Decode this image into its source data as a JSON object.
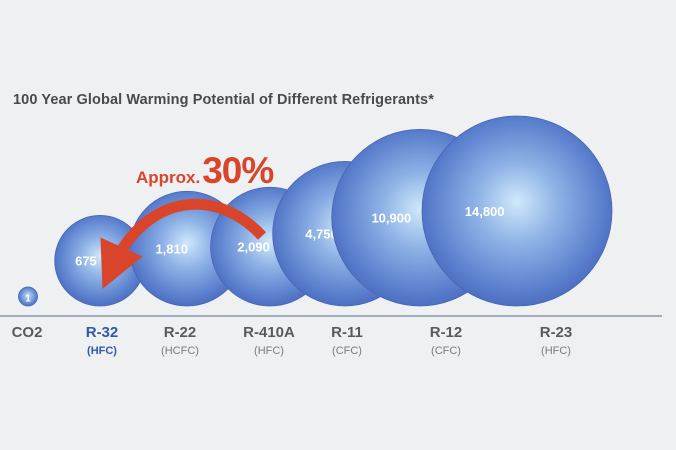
{
  "chart_data": {
    "type": "bubble",
    "title": "100 Year Global Warming Potential of Different Refrigerants*",
    "annotation": {
      "prefix": "Approx.",
      "value": "30%",
      "from": "R-410A",
      "to": "R-32"
    },
    "bar_color": "#4f74c4",
    "highlight_color": "#2f5aa8",
    "annotation_color": "#d9452a",
    "series": [
      {
        "name": "CO2",
        "category": "",
        "value": 1,
        "label": "1"
      },
      {
        "name": "R-32",
        "category": "(HFC)",
        "value": 675,
        "label": "675",
        "highlight": true
      },
      {
        "name": "R-22",
        "category": "(HCFC)",
        "value": 1810,
        "label": "1,810"
      },
      {
        "name": "R-410A",
        "category": "(HFC)",
        "value": 2090,
        "label": "2,090"
      },
      {
        "name": "R-11",
        "category": "(CFC)",
        "value": 4750,
        "label": "4,750"
      },
      {
        "name": "R-12",
        "category": "(CFC)",
        "value": 10900,
        "label": "10,900"
      },
      {
        "name": "R-23",
        "category": "(HFC)",
        "value": 14800,
        "label": "14,800"
      }
    ]
  }
}
